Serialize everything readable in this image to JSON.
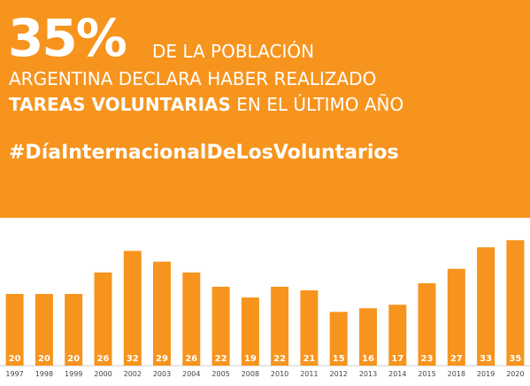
{
  "header": {
    "big_percent": "35%",
    "line1": "DE LA POBLACIÓN",
    "line2": "ARGENTINA DECLARA HABER REALIZADO",
    "line3_bold": "TAREAS VOLUNTARIAS",
    "line3_rest": " EN EL ÚLTIMO AÑO",
    "hashtag": "#DíaInternacionalDeLosVoluntarios"
  },
  "colors": {
    "accent": "#f7941d",
    "text_light": "#ffffff",
    "axis_text": "#444444"
  },
  "chart_data": {
    "type": "bar",
    "categories": [
      "1997",
      "1998",
      "1999",
      "2000",
      "2002",
      "2003",
      "2004",
      "2005",
      "2008",
      "2010",
      "2011",
      "2012",
      "2013",
      "2014",
      "2015",
      "2018",
      "2019",
      "2020"
    ],
    "values": [
      20,
      20,
      20,
      26,
      32,
      29,
      26,
      22,
      19,
      22,
      21,
      15,
      16,
      17,
      23,
      27,
      33,
      35
    ],
    "title": "",
    "xlabel": "",
    "ylabel": "",
    "ylim": [
      0,
      40
    ],
    "grid": false,
    "legend": "none"
  }
}
